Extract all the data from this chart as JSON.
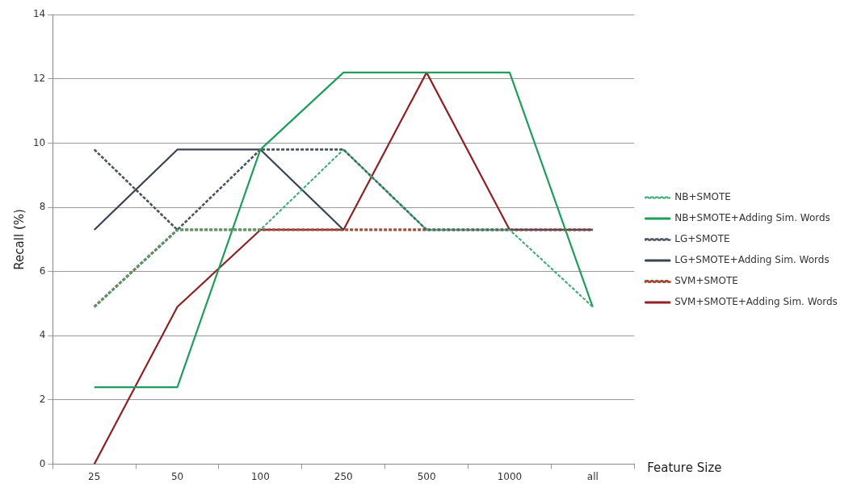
{
  "chart_data": {
    "type": "line",
    "xlabel": "Feature Size",
    "ylabel": "Recall (%)",
    "categories": [
      "25",
      "50",
      "100",
      "250",
      "500",
      "1000",
      "all"
    ],
    "ylim": [
      0,
      14
    ],
    "yticks": [
      0,
      2,
      4,
      6,
      8,
      10,
      12,
      14
    ],
    "grid": "y",
    "legend": "right",
    "marker": "none",
    "series": [
      {
        "name": "NB+SMOTE",
        "color": "#3aaa75",
        "line_style": "dashed",
        "values": [
          4.9,
          7.3,
          7.3,
          9.8,
          7.3,
          7.3,
          4.9
        ]
      },
      {
        "name": "NB+SMOTE+Adding Sim. Words",
        "color": "#1e9e5a",
        "line_style": "solid",
        "values": [
          2.4,
          2.4,
          9.8,
          12.2,
          12.2,
          12.2,
          4.9
        ]
      },
      {
        "name": "LG+SMOTE",
        "color": "#4a5360",
        "line_style": "dashed",
        "values": [
          9.8,
          7.3,
          9.8,
          9.8,
          7.3,
          7.3,
          7.3
        ]
      },
      {
        "name": "LG+SMOTE+Adding Sim. Words",
        "color": "#3b4451",
        "line_style": "solid",
        "values": [
          7.3,
          9.8,
          9.8,
          7.3,
          null,
          null,
          null
        ]
      },
      {
        "name": "SVM+SMOTE",
        "color": "#a0503a",
        "line_style": "dashed",
        "values": [
          4.9,
          7.3,
          7.3,
          7.3,
          7.3,
          7.3,
          7.3
        ]
      },
      {
        "name": "SVM+SMOTE+Adding Sim. Words",
        "color": "#8e2226",
        "line_style": "solid",
        "values": [
          0,
          4.9,
          7.3,
          7.3,
          12.2,
          7.3,
          7.3
        ]
      }
    ]
  }
}
